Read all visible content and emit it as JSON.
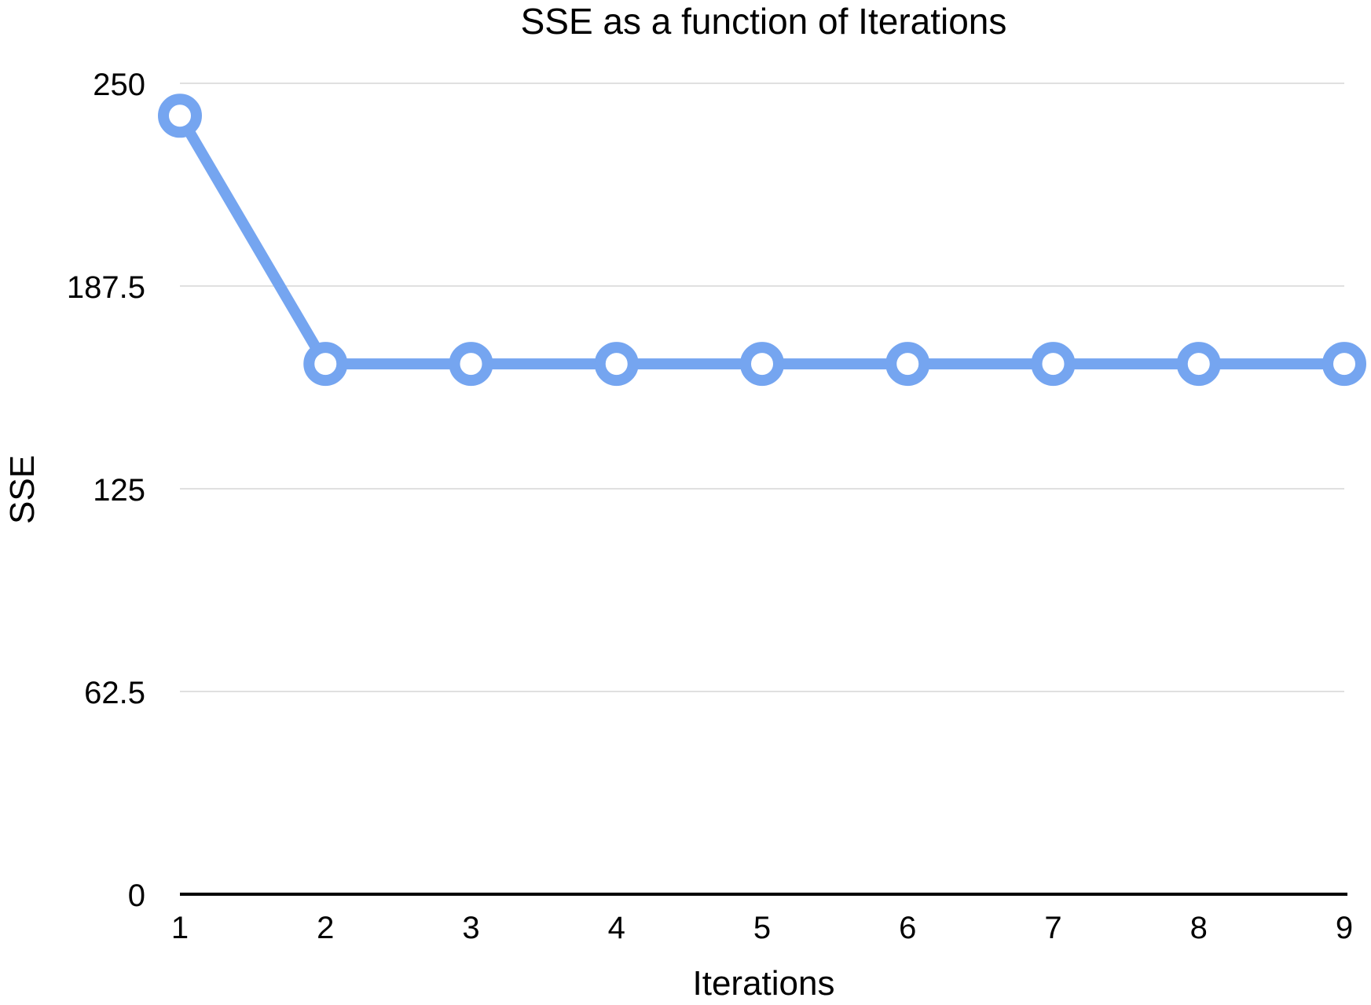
{
  "chart_data": {
    "type": "line",
    "title": "SSE as a function of Iterations",
    "xlabel": "Iterations",
    "ylabel": "SSE",
    "x": [
      1,
      2,
      3,
      4,
      5,
      6,
      7,
      8,
      9
    ],
    "x_tick_labels": [
      "1",
      "2",
      "3",
      "4",
      "5",
      "6",
      "7",
      "8",
      "9"
    ],
    "y_ticks": [
      0,
      62.5,
      125,
      187.5,
      250
    ],
    "y_tick_labels": [
      "0",
      "62.5",
      "125",
      "187.5",
      "250"
    ],
    "ylim": [
      0,
      250
    ],
    "xlim": [
      1,
      9
    ],
    "grid": "horizontal",
    "legend": "none",
    "series": [
      {
        "values": [
          240,
          163.5,
          163.5,
          163.5,
          163.5,
          163.5,
          163.5,
          163.5,
          163.5
        ],
        "color": "#75a5f0"
      }
    ],
    "colors": {
      "grid": "#d6d6d6",
      "axis": "#000000",
      "marker_fill": "#ffffff"
    }
  }
}
